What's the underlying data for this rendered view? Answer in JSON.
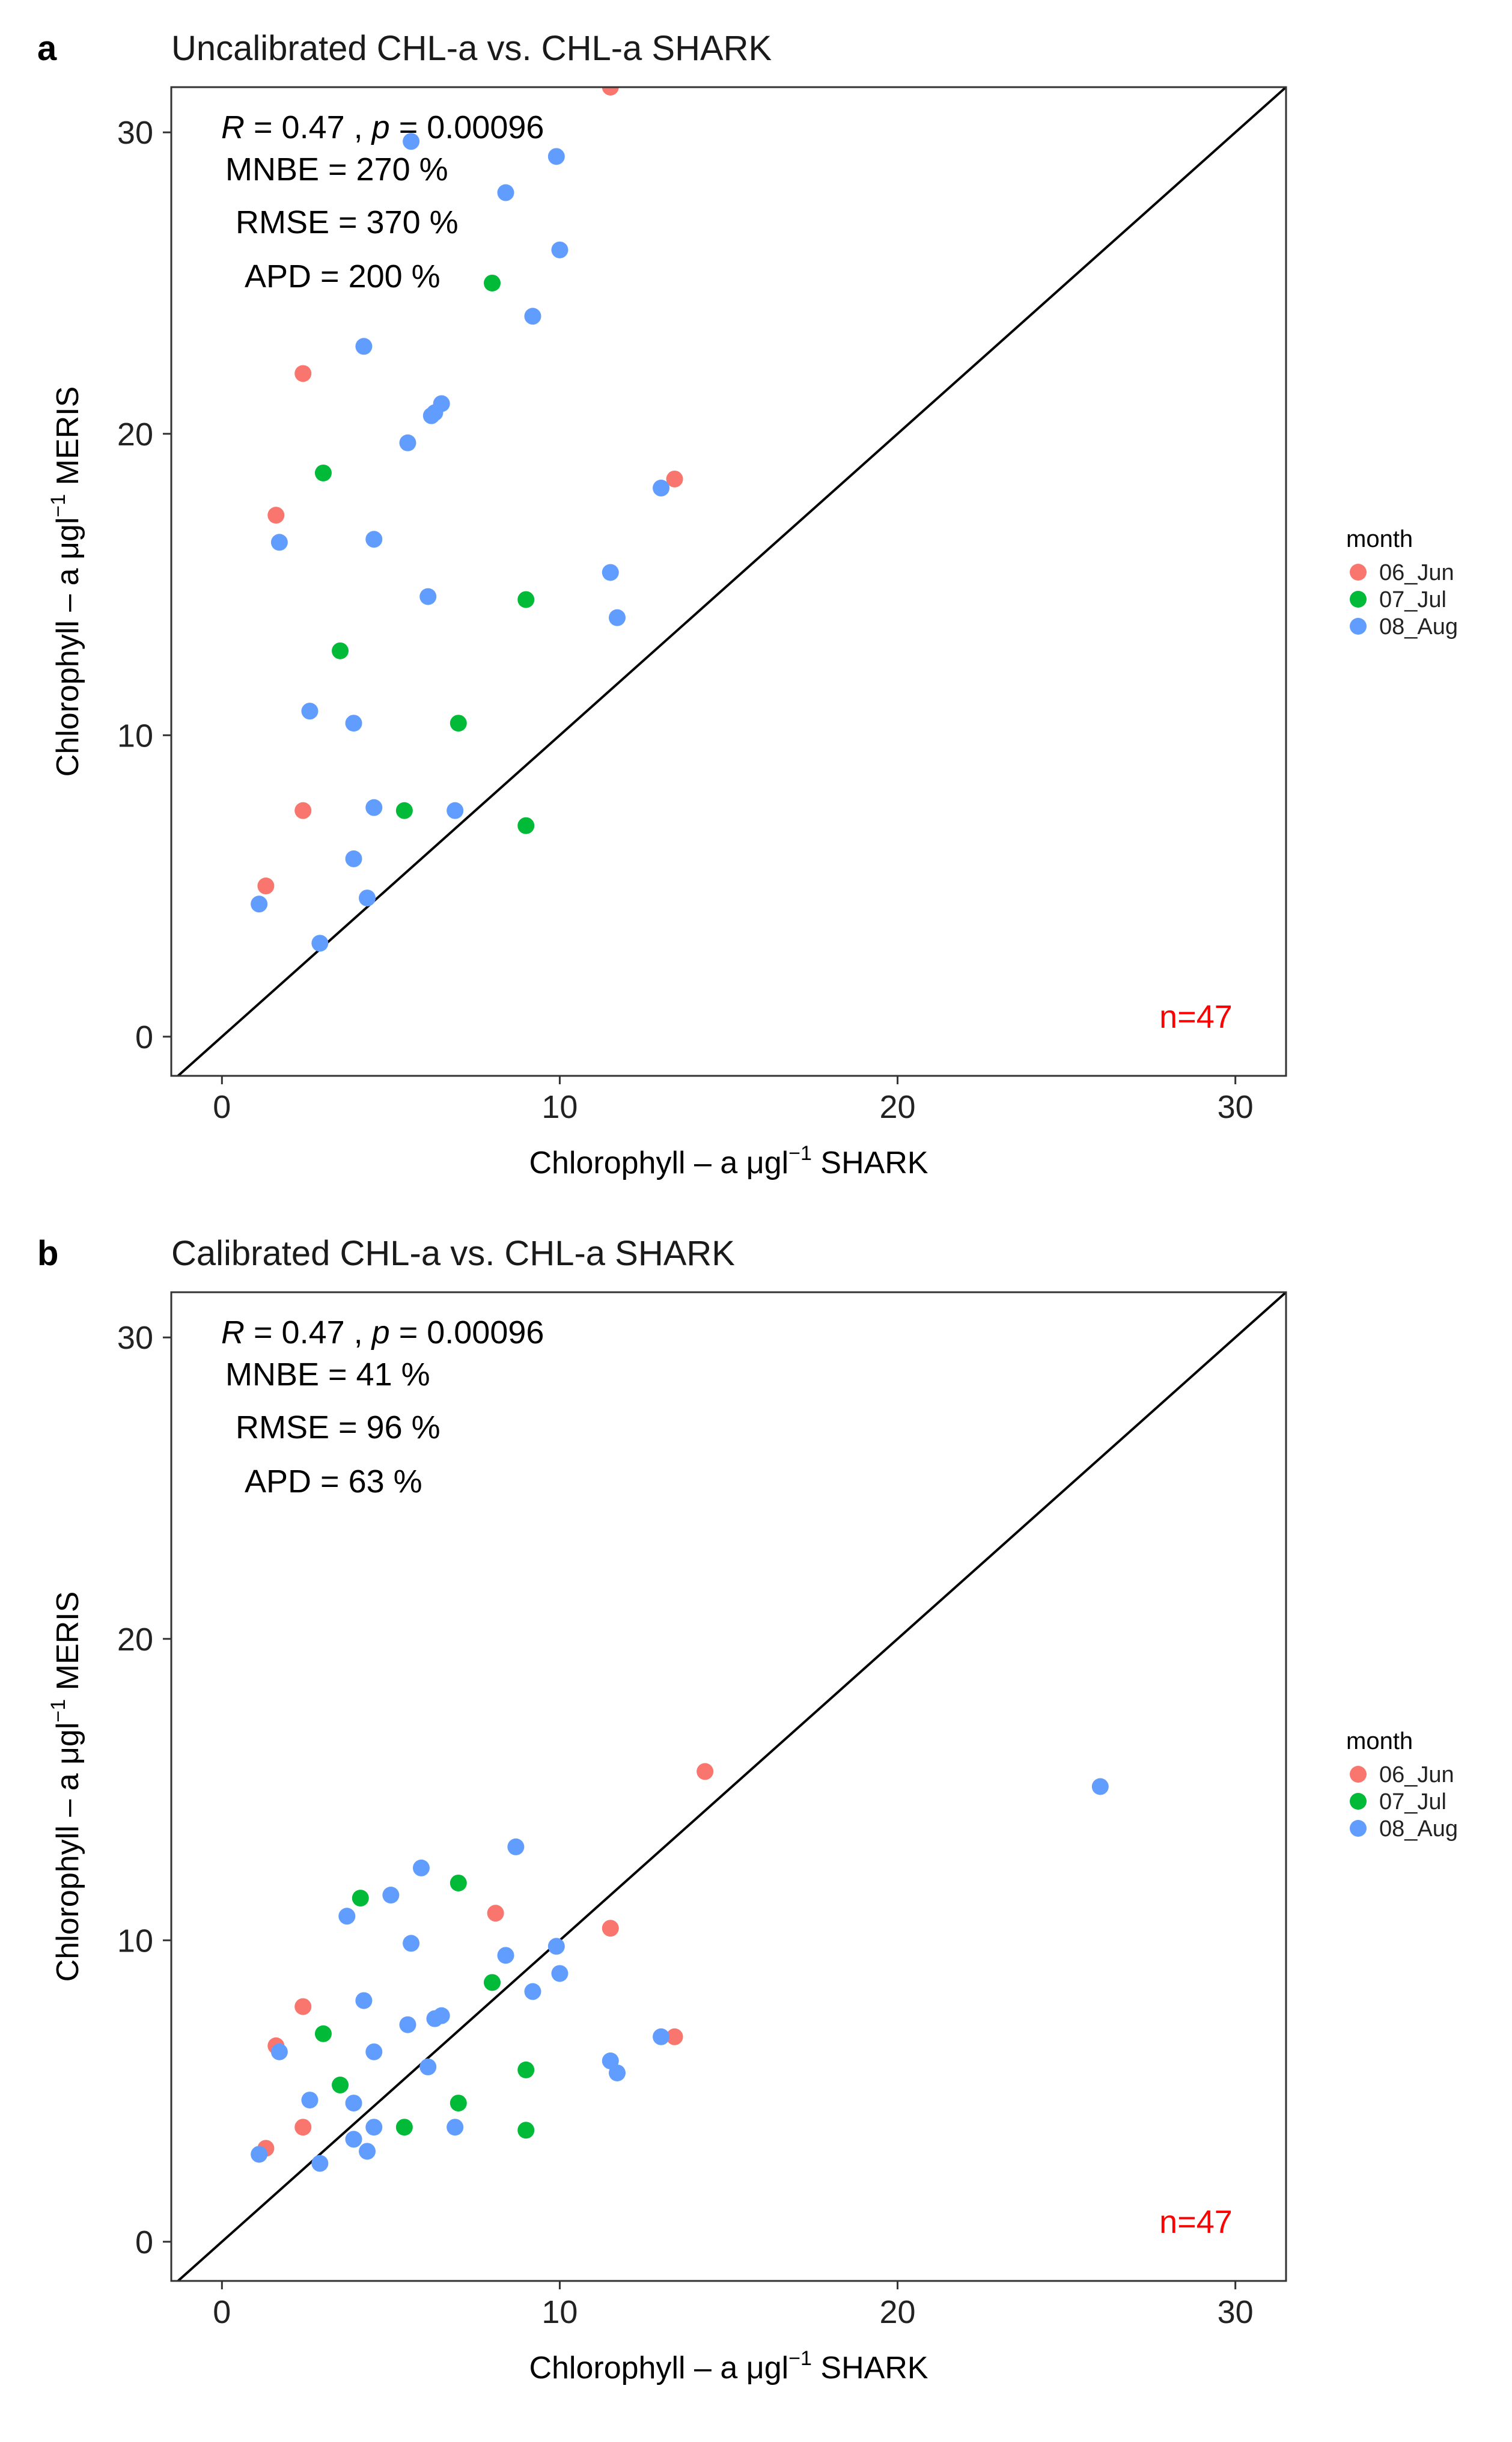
{
  "chart_data": [
    {
      "panel_label": "a",
      "type": "scatter",
      "title": "Uncalibrated CHL-a vs. CHL-a SHARK",
      "xlabel_prefix": "Chlorophyll – a μgl",
      "xlabel_sup": "−1",
      "xlabel_suffix": " SHARK",
      "ylabel_prefix": "Chlorophyll – a μgl",
      "ylabel_sup": "−1",
      "ylabel_suffix": " MERIS",
      "xlim": [
        -1.5,
        31.5
      ],
      "ylim": [
        -1.3,
        31.5
      ],
      "xticks": [
        0,
        10,
        20,
        30
      ],
      "yticks": [
        0,
        10,
        20,
        30
      ],
      "grid": false,
      "reference_line": "y = x",
      "stats": {
        "r_label": "R",
        "r_value": " = 0.47 , ",
        "p_label": "p",
        "p_value": " = 0.00096",
        "mnbe": "MNBE = 270 %",
        "rmse": "RMSE = 370 %",
        "apd": "APD = 200 %"
      },
      "n_label": "n=47",
      "legend": {
        "title": "month",
        "placement": "right",
        "entries": [
          {
            "name": "06_Jun",
            "color": "#F8766D"
          },
          {
            "name": "07_Jul",
            "color": "#00BA38"
          },
          {
            "name": "08_Aug",
            "color": "#619CFF"
          }
        ]
      },
      "series": [
        {
          "name": "06_Jun",
          "color": "#F8766D",
          "points": [
            [
              11.5,
              31.5
            ],
            [
              2.4,
              22.0
            ],
            [
              1.6,
              17.3
            ],
            [
              13.4,
              18.5
            ],
            [
              2.4,
              7.5
            ],
            [
              1.3,
              5.0
            ]
          ]
        },
        {
          "name": "07_Jul",
          "color": "#00BA38",
          "points": [
            [
              8.0,
              25.0
            ],
            [
              3.0,
              18.7
            ],
            [
              9.0,
              14.5
            ],
            [
              3.5,
              12.8
            ],
            [
              7.0,
              10.4
            ],
            [
              5.4,
              7.5
            ],
            [
              9.0,
              7.0
            ]
          ]
        },
        {
          "name": "08_Aug",
          "color": "#619CFF",
          "points": [
            [
              5.6,
              29.7
            ],
            [
              9.9,
              29.2
            ],
            [
              8.4,
              28.0
            ],
            [
              10.0,
              26.1
            ],
            [
              9.2,
              23.9
            ],
            [
              4.2,
              22.9
            ],
            [
              6.5,
              21.0
            ],
            [
              6.3,
              20.7
            ],
            [
              6.2,
              20.6
            ],
            [
              5.5,
              19.7
            ],
            [
              13.0,
              18.2
            ],
            [
              1.7,
              16.4
            ],
            [
              4.5,
              16.5
            ],
            [
              6.1,
              14.6
            ],
            [
              11.5,
              15.4
            ],
            [
              11.7,
              13.9
            ],
            [
              2.6,
              10.8
            ],
            [
              3.9,
              10.4
            ],
            [
              4.5,
              7.6
            ],
            [
              6.9,
              7.5
            ],
            [
              3.9,
              5.9
            ],
            [
              4.3,
              4.6
            ],
            [
              1.1,
              4.4
            ],
            [
              2.9,
              3.1
            ]
          ]
        }
      ]
    },
    {
      "panel_label": "b",
      "type": "scatter",
      "title": "Calibrated CHL-a vs. CHL-a SHARK",
      "xlabel_prefix": "Chlorophyll – a μgl",
      "xlabel_sup": "−1",
      "xlabel_suffix": " SHARK",
      "ylabel_prefix": "Chlorophyll – a μgl",
      "ylabel_sup": "−1",
      "ylabel_suffix": " MERIS",
      "xlim": [
        -1.5,
        31.5
      ],
      "ylim": [
        -1.3,
        31.5
      ],
      "xticks": [
        0,
        10,
        20,
        30
      ],
      "yticks": [
        0,
        10,
        20,
        30
      ],
      "grid": false,
      "reference_line": "y = x",
      "stats": {
        "r_label": "R",
        "r_value": " = 0.47 , ",
        "p_label": "p",
        "p_value": " = 0.00096",
        "mnbe": "MNBE = 41 %",
        "rmse": "RMSE = 96 %",
        "apd": "APD = 63 %"
      },
      "n_label": "n=47",
      "legend": {
        "title": "month",
        "placement": "right",
        "entries": [
          {
            "name": "06_Jun",
            "color": "#F8766D"
          },
          {
            "name": "07_Jul",
            "color": "#00BA38"
          },
          {
            "name": "08_Aug",
            "color": "#619CFF"
          }
        ]
      },
      "series": [
        {
          "name": "06_Jun",
          "color": "#F8766D",
          "points": [
            [
              14.3,
              15.6
            ],
            [
              8.1,
              10.9
            ],
            [
              11.5,
              10.4
            ],
            [
              2.4,
              7.8
            ],
            [
              1.6,
              6.5
            ],
            [
              13.4,
              6.8
            ],
            [
              2.4,
              3.8
            ],
            [
              1.3,
              3.1
            ]
          ]
        },
        {
          "name": "07_Jul",
          "color": "#00BA38",
          "points": [
            [
              7.0,
              11.9
            ],
            [
              4.1,
              11.4
            ],
            [
              8.0,
              8.6
            ],
            [
              3.0,
              6.9
            ],
            [
              9.0,
              5.7
            ],
            [
              3.5,
              5.2
            ],
            [
              7.0,
              4.6
            ],
            [
              5.4,
              3.8
            ],
            [
              9.0,
              3.7
            ]
          ]
        },
        {
          "name": "08_Aug",
          "color": "#619CFF",
          "points": [
            [
              26.0,
              15.1
            ],
            [
              8.7,
              13.1
            ],
            [
              5.9,
              12.4
            ],
            [
              5.0,
              11.5
            ],
            [
              3.7,
              10.8
            ],
            [
              5.6,
              9.9
            ],
            [
              9.9,
              9.8
            ],
            [
              10.0,
              8.9
            ],
            [
              8.4,
              9.5
            ],
            [
              9.2,
              8.3
            ],
            [
              4.2,
              8.0
            ],
            [
              6.5,
              7.5
            ],
            [
              6.3,
              7.4
            ],
            [
              5.5,
              7.2
            ],
            [
              13.0,
              6.8
            ],
            [
              1.7,
              6.3
            ],
            [
              4.5,
              6.3
            ],
            [
              6.1,
              5.8
            ],
            [
              11.5,
              6.0
            ],
            [
              11.7,
              5.6
            ],
            [
              2.6,
              4.7
            ],
            [
              3.9,
              4.6
            ],
            [
              4.5,
              3.8
            ],
            [
              6.9,
              3.8
            ],
            [
              3.9,
              3.4
            ],
            [
              4.3,
              3.0
            ],
            [
              1.1,
              2.9
            ],
            [
              2.9,
              2.6
            ]
          ]
        }
      ]
    }
  ]
}
